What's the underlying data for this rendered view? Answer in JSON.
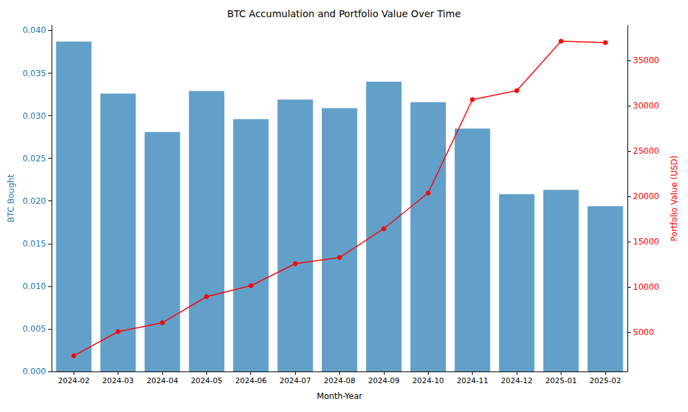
{
  "chart_data": {
    "type": "bar",
    "title": "BTC Accumulation and Portfolio Value Over Time",
    "x_label": "Month-Year",
    "y_label": "BTC Bought",
    "y2_label": "Portfolio Value (USD)",
    "categories": [
      "2024-02",
      "2024-03",
      "2024-04",
      "2024-05",
      "2024-06",
      "2024-07",
      "2024-08",
      "2024-09",
      "2024-10",
      "2024-11",
      "2024-12",
      "2025-01",
      "2025-02"
    ],
    "series": [
      {
        "type": "bar",
        "color": "#1f77b4",
        "values": [
          0.0387,
          0.0326,
          0.0281,
          0.0329,
          0.0296,
          0.0319,
          0.0309,
          0.034,
          0.0316,
          0.0285,
          0.0208,
          0.0213,
          0.0194
        ]
      },
      {
        "type": "line",
        "axis": "y2",
        "color": "#ff0000",
        "marker": "circle",
        "line_style": "solid",
        "values": [
          2400,
          5060,
          6050,
          8930,
          10140,
          12570,
          13250,
          16440,
          20380,
          30700,
          31680,
          37140,
          36990
        ]
      }
    ],
    "ylim": [
      0,
      0.0406
    ],
    "yticks": [
      {
        "value": 0,
        "label": "0.000"
      },
      {
        "value": 0.005,
        "label": "0.005"
      },
      {
        "value": 0.01,
        "label": "0.010"
      },
      {
        "value": 0.015,
        "label": "0.015"
      },
      {
        "value": 0.02,
        "label": "0.020"
      },
      {
        "value": 0.025,
        "label": "0.025"
      },
      {
        "value": 0.03,
        "label": "0.030"
      },
      {
        "value": 0.035,
        "label": "0.035"
      },
      {
        "value": 0.04,
        "label": "0.040"
      }
    ],
    "y2lim": [
      663,
      38887
    ],
    "y2ticks": [
      5000,
      10000,
      15000,
      20000,
      25000,
      30000,
      35000
    ],
    "grid": false
  }
}
